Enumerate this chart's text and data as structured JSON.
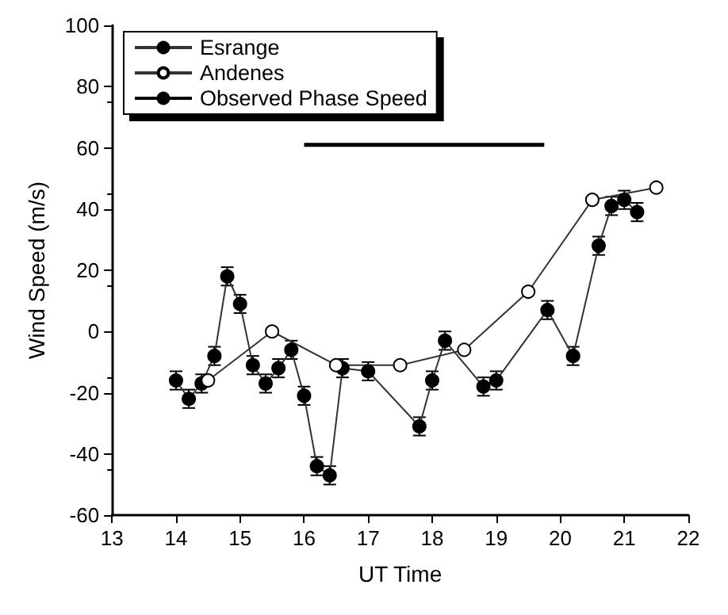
{
  "chart_data": {
    "type": "line",
    "xlabel": "UT Time",
    "ylabel": "Wind Speed (m/s)",
    "xlim": [
      13,
      22
    ],
    "xticks": [
      13,
      14,
      15,
      16,
      17,
      18,
      19,
      20,
      21,
      22
    ],
    "ylim": [
      -60,
      100
    ],
    "yticks": [
      -60,
      -40,
      -20,
      0,
      20,
      40,
      60,
      80,
      100
    ],
    "grid": false,
    "legend": "top left",
    "line_style": "solid",
    "series": [
      {
        "name": "Esrange",
        "color": "#000000",
        "marker": "circle",
        "x": [
          14.0,
          14.2,
          14.4,
          14.6,
          14.8,
          15.0,
          15.2,
          15.4,
          15.6,
          15.8,
          16.0,
          16.2,
          16.4,
          16.6,
          17.0,
          17.8,
          18.0,
          18.2,
          18.8,
          19.0,
          19.8,
          20.2,
          20.6,
          20.8,
          21.0,
          21.2
        ],
        "values": [
          -16,
          -22,
          -17,
          -8,
          18,
          9,
          -11,
          -17,
          -12,
          -6,
          -21,
          -44,
          -47,
          -12,
          -13,
          -31,
          -16,
          -3,
          -18,
          -16,
          7,
          -8,
          28,
          41,
          43,
          39
        ],
        "errors": [
          3,
          3,
          3,
          3,
          3,
          3,
          3,
          3,
          3,
          3,
          3,
          3,
          3,
          3,
          3,
          3,
          3,
          3,
          3,
          3,
          3,
          3,
          3,
          3,
          3,
          3
        ]
      },
      {
        "name": "Andenes",
        "color": "#ffffff",
        "marker": "circle",
        "x": [
          14.5,
          15.5,
          16.5,
          17.5,
          18.5,
          19.5,
          20.5,
          21.5
        ],
        "values": [
          -16,
          0,
          -11,
          -11,
          -6,
          13,
          43,
          47
        ]
      },
      {
        "name": "Observed Phase Speed",
        "color": "#000000",
        "marker": "none",
        "x": [
          16,
          19.75
        ],
        "values": [
          61,
          61
        ]
      }
    ]
  }
}
